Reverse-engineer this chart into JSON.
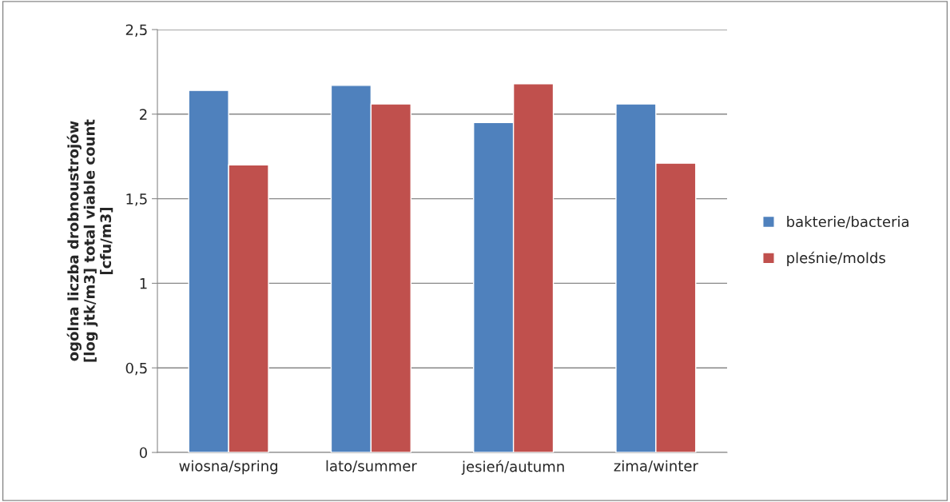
{
  "chart_data": {
    "type": "bar",
    "ylabel": "ogólna liczba drobnoustrojów\n[log jtk/m3] total viable count\n[cfu/m3]",
    "categories": [
      "wiosna/spring",
      "lato/summer",
      "jesień/autumn",
      "zima/winter"
    ],
    "series": [
      {
        "name": "bakterie/bacteria",
        "color": "#4f81bd",
        "values": [
          2.14,
          2.17,
          1.95,
          2.06
        ]
      },
      {
        "name": "pleśnie/molds",
        "color": "#c0504d",
        "values": [
          1.7,
          2.06,
          2.18,
          1.71
        ]
      }
    ],
    "ylim": [
      0,
      2.5
    ],
    "yticks": [
      0,
      {
        "value": 0.5,
        "label": "0,5"
      },
      1,
      {
        "value": 1.5,
        "label": "1,5"
      },
      2,
      {
        "value": 2.5,
        "label": "2,5"
      }
    ],
    "grid": "y",
    "legend": "right"
  }
}
